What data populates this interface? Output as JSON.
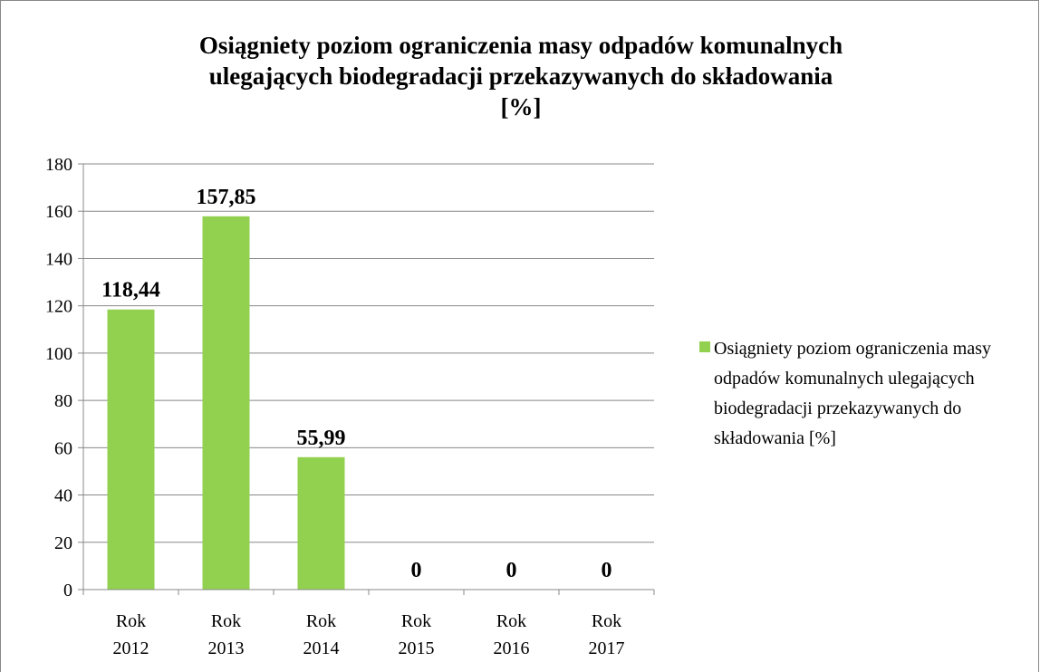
{
  "chart_data": {
    "type": "bar",
    "title": "Osiągniety poziom ograniczenia masy odpadów komunalnych ulegających biodegradacji przekazywanych do składowania [%]",
    "categories": [
      "Rok 2012",
      "Rok 2013",
      "Rok 2014",
      "Rok 2015",
      "Rok 2016",
      "Rok 2017"
    ],
    "series": [
      {
        "name": "Osiągniety poziom ograniczenia masy odpadów komunalnych ulegających biodegradacji przekazywanych do składowania [%]",
        "color": "#92d050",
        "values": [
          118.44,
          157.85,
          55.99,
          0,
          0,
          0
        ],
        "value_labels": [
          "118,44",
          "157,85",
          "55,99",
          "0",
          "0",
          "0"
        ]
      }
    ],
    "ylim": [
      0,
      180
    ],
    "yticks": [
      0,
      20,
      40,
      60,
      80,
      100,
      120,
      140,
      160,
      180
    ],
    "grid": true,
    "legend": "right"
  }
}
